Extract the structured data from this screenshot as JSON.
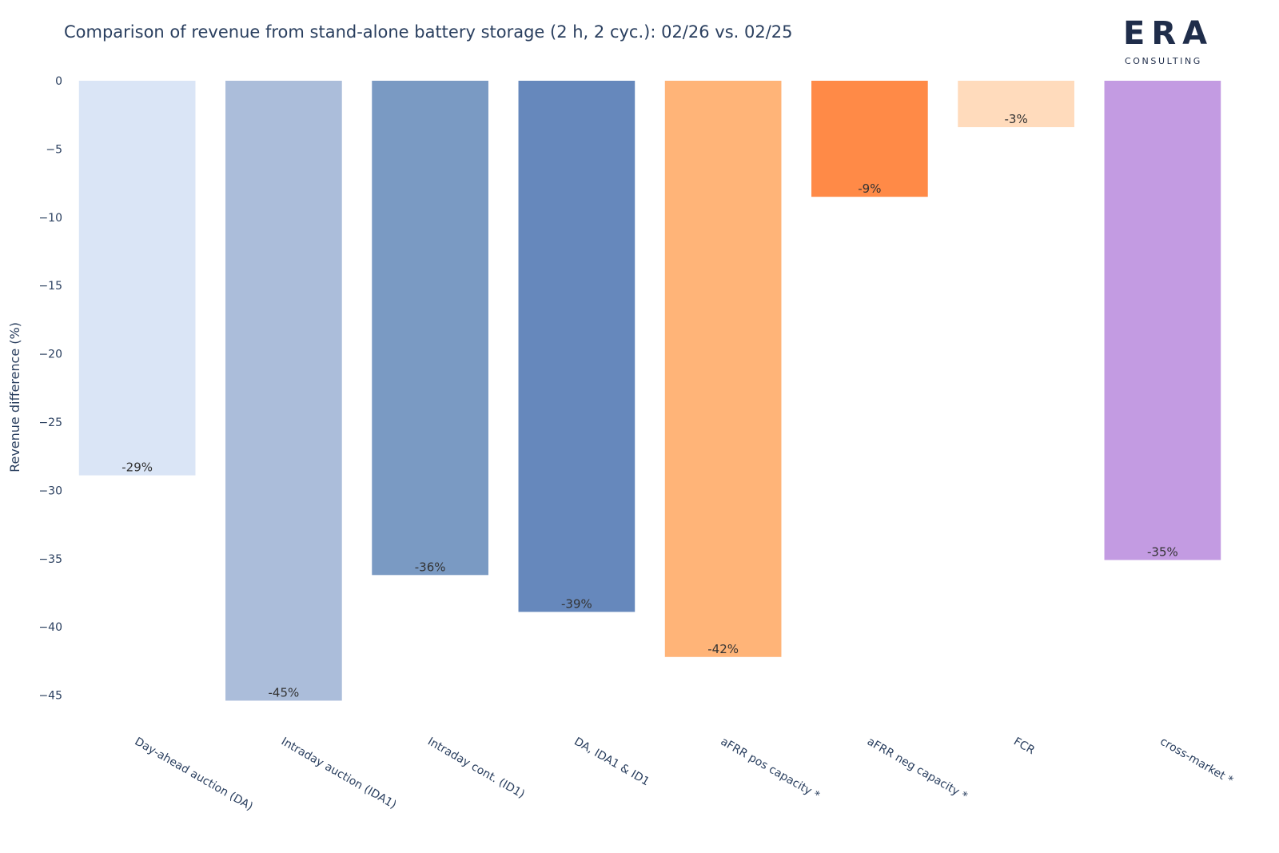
{
  "chart_data": {
    "type": "bar",
    "title": "Comparison of revenue from stand-alone battery storage (2 h, 2 cyc.): 02/26 vs. 02/25",
    "xlabel": "",
    "ylabel": "Revenue difference (%)",
    "ylim": [
      -48,
      0
    ],
    "yticks": [
      0,
      -5,
      -10,
      -15,
      -20,
      -25,
      -30,
      -35,
      -40,
      -45
    ],
    "grid": false,
    "categories": [
      "Day-ahead auction (DA)",
      "Intraday auction (IDA1)",
      "Intraday cont. (ID1)",
      "DA, IDA1 & ID1",
      "aFRR pos capacity *",
      "aFRR neg capacity *",
      "FCR",
      "cross-market *"
    ],
    "values": [
      -28.9,
      -45.4,
      -36.2,
      -38.9,
      -42.2,
      -8.5,
      -3.4,
      -35.1
    ],
    "data_labels": [
      "-29%",
      "-45%",
      "-36%",
      "-39%",
      "-42%",
      "-9%",
      "-3%",
      "-35%"
    ],
    "colors": [
      "#dae5f6",
      "#abbdda",
      "#7a9ac3",
      "#6688bc",
      "#ffb478",
      "#ff8a47",
      "#ffdbbc",
      "#c39be2"
    ]
  },
  "logo": {
    "name": "ERA",
    "subtitle": "CONSULTING"
  }
}
